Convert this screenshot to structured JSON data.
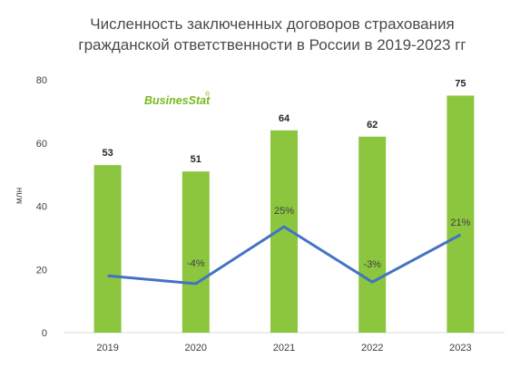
{
  "colors": {
    "bar": "#8cc63f",
    "line": "#4472c4",
    "axis": "#d9d9d9",
    "logo": "#7ab81e"
  },
  "logo": {
    "text": "BusinesStat",
    "mark": "®"
  },
  "chart_data": {
    "type": "bar",
    "title_lines": [
      "Численность заключенных договоров страхования",
      "гражданской ответственности в России в 2019-2023 гг"
    ],
    "xlabel": "",
    "ylabel": "млн",
    "ylim": [
      0,
      80
    ],
    "yticks": [
      0,
      20,
      40,
      60,
      80
    ],
    "grid": false,
    "categories": [
      "2019",
      "2020",
      "2021",
      "2022",
      "2023"
    ],
    "values": [
      53,
      51,
      64,
      62,
      75
    ],
    "value_labels": [
      "53",
      "51",
      "64",
      "62",
      "75"
    ],
    "growth": {
      "values": [
        null,
        -4,
        25,
        -3,
        21
      ],
      "labels": [
        "",
        "-4%",
        "25%",
        "-3%",
        "21%"
      ],
      "line_y": [
        18,
        15.5,
        33.5,
        16,
        31
      ]
    }
  }
}
